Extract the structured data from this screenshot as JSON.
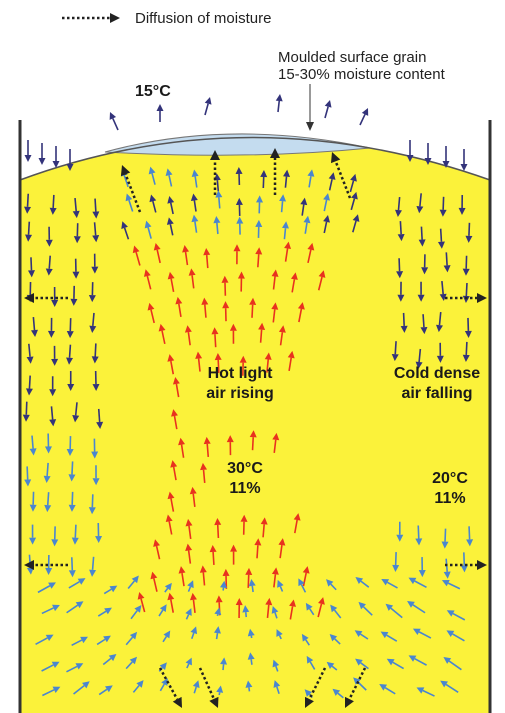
{
  "legend": {
    "label": "Diffusion of moisture"
  },
  "surface_label": [
    "Moulded surface grain",
    "15-30% moisture content"
  ],
  "top_temperature": "15°C",
  "center": {
    "label": [
      "Hot light",
      "air rising"
    ],
    "temperature": "30°C",
    "moisture": "11%"
  },
  "sides": {
    "label": [
      "Cold dense",
      "air falling"
    ],
    "temperature": "20°C",
    "moisture": "11%"
  }
}
